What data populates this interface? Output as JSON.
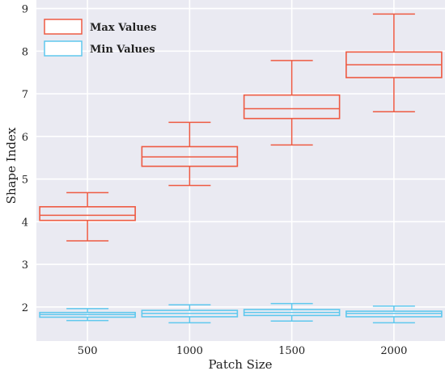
{
  "chart_data": {
    "type": "box",
    "xlabel": "Patch Size",
    "ylabel": "Shape Index",
    "categories": [
      "500",
      "1000",
      "1500",
      "2000"
    ],
    "ylim": [
      1.2,
      9.2
    ],
    "yticks": [
      2,
      3,
      4,
      5,
      6,
      7,
      8,
      9
    ],
    "grid": true,
    "background": "#eaeaf2",
    "legend_position": "top-left",
    "series": [
      {
        "name": "Max Values",
        "color": "#ee5a42",
        "boxes": [
          {
            "whisker_low": 3.55,
            "q1": 4.03,
            "median": 4.15,
            "q3": 4.35,
            "whisker_high": 4.68
          },
          {
            "whisker_low": 4.85,
            "q1": 5.3,
            "median": 5.52,
            "q3": 5.76,
            "whisker_high": 6.33
          },
          {
            "whisker_low": 5.8,
            "q1": 6.42,
            "median": 6.65,
            "q3": 6.97,
            "whisker_high": 7.78
          },
          {
            "whisker_low": 6.58,
            "q1": 7.38,
            "median": 7.68,
            "q3": 7.98,
            "whisker_high": 8.87
          }
        ]
      },
      {
        "name": "Min Values",
        "color": "#5fc8ee",
        "boxes": [
          {
            "whisker_low": 1.68,
            "q1": 1.76,
            "median": 1.82,
            "q3": 1.87,
            "whisker_high": 1.96
          },
          {
            "whisker_low": 1.63,
            "q1": 1.77,
            "median": 1.85,
            "q3": 1.92,
            "whisker_high": 2.05
          },
          {
            "whisker_low": 1.67,
            "q1": 1.8,
            "median": 1.87,
            "q3": 1.94,
            "whisker_high": 2.08
          },
          {
            "whisker_low": 1.63,
            "q1": 1.77,
            "median": 1.85,
            "q3": 1.9,
            "whisker_high": 2.02
          }
        ]
      }
    ]
  }
}
